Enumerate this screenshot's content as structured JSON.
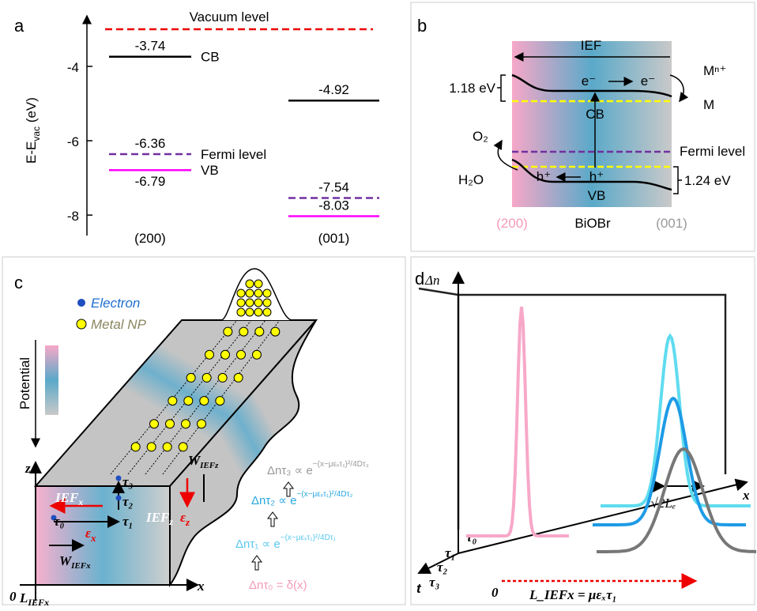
{
  "panel_a": {
    "label": "a",
    "title": "Vacuum level",
    "ylabel": [
      "E-E",
      "vac",
      " (eV)"
    ],
    "ylim": [
      -2.64,
      -8.55
    ],
    "yticks": [
      -4,
      -6,
      -8
    ],
    "columns": [
      {
        "name": "(200)",
        "levels": [
          {
            "value": -3.74,
            "tag": "CB",
            "color": "#000000",
            "style": "solid"
          },
          {
            "value": -6.36,
            "tag": "Fermi level",
            "color": "#7030a0",
            "style": "dashed"
          },
          {
            "value": -6.79,
            "tag": "VB",
            "color": "#ff00ff",
            "style": "solid"
          }
        ]
      },
      {
        "name": "(001)",
        "levels": [
          {
            "value": -4.92,
            "color": "#000000",
            "style": "solid"
          },
          {
            "value": -7.54,
            "color": "#7030a0",
            "style": "dashed"
          },
          {
            "value": -8.03,
            "color": "#ff00ff",
            "style": "solid"
          }
        ]
      }
    ]
  },
  "panel_b": {
    "label": "b",
    "ief": "IEF",
    "electron": [
      "e⁻",
      "e⁻"
    ],
    "metal_ion": "Mⁿ⁺",
    "metal": "M",
    "cb_bend": "1.18 eV",
    "cb": "CB",
    "o2": "O₂",
    "h2o": "H₂O",
    "hole": [
      "h⁺",
      "h⁺"
    ],
    "fermi": "Fermi level",
    "vb_bend": "1.24 eV",
    "vb": "VB",
    "facet_left": "(200)",
    "material": "BiOBr",
    "facet_right": "(001)"
  },
  "panel_c": {
    "label": "c",
    "electron": "Electron",
    "metal_np": "Metal NP",
    "potential": "Potential",
    "z": "z",
    "x": "x",
    "origin": "0",
    "ief_x": {
      "main": "IEF",
      "sub": "x"
    },
    "ief_z": {
      "main": "IEF",
      "sub": "z"
    },
    "w_x": {
      "main": "W",
      "sub": "IEFx"
    },
    "w_z": {
      "main": "W",
      "sub": "IEFz"
    },
    "l_x": {
      "main": "L",
      "sub": "IEFx"
    },
    "eps_x": {
      "main": "ε",
      "sub": "x"
    },
    "eps_z": {
      "main": "ε",
      "sub": "z"
    },
    "taus": [
      "τ₀",
      "τ₁",
      "τ₂",
      "τ₃"
    ],
    "equations": [
      {
        "lhs": "Δnτ₃ ∝ e",
        "exp": "−(x−μεₓτ₁)²/4Dτ₃",
        "color": "#999999"
      },
      {
        "lhs": "Δnτ₂ ∝ e",
        "exp": "−(x−μεₓτ₁)²/4Dτ₂",
        "color": "#29a8e0"
      },
      {
        "lhs": "Δnτ₁ ∝ e",
        "exp": "−(x−μεₓτ₁)²/4Dτ₁",
        "color": "#5bc8f0"
      },
      {
        "lhs": "Δnτ₀ = δ(x)",
        "color": "#f49ab8"
      }
    ]
  },
  "panel_d": {
    "label": "d",
    "delta_n": "Δn",
    "x": "x",
    "t": "t",
    "taus": [
      "τ₀",
      "τ₁",
      "τ₂",
      "τ₃"
    ],
    "width": "2√2Lₑ",
    "origin": "0",
    "distance": "L_IEFx = μεₓτ₁"
  }
}
